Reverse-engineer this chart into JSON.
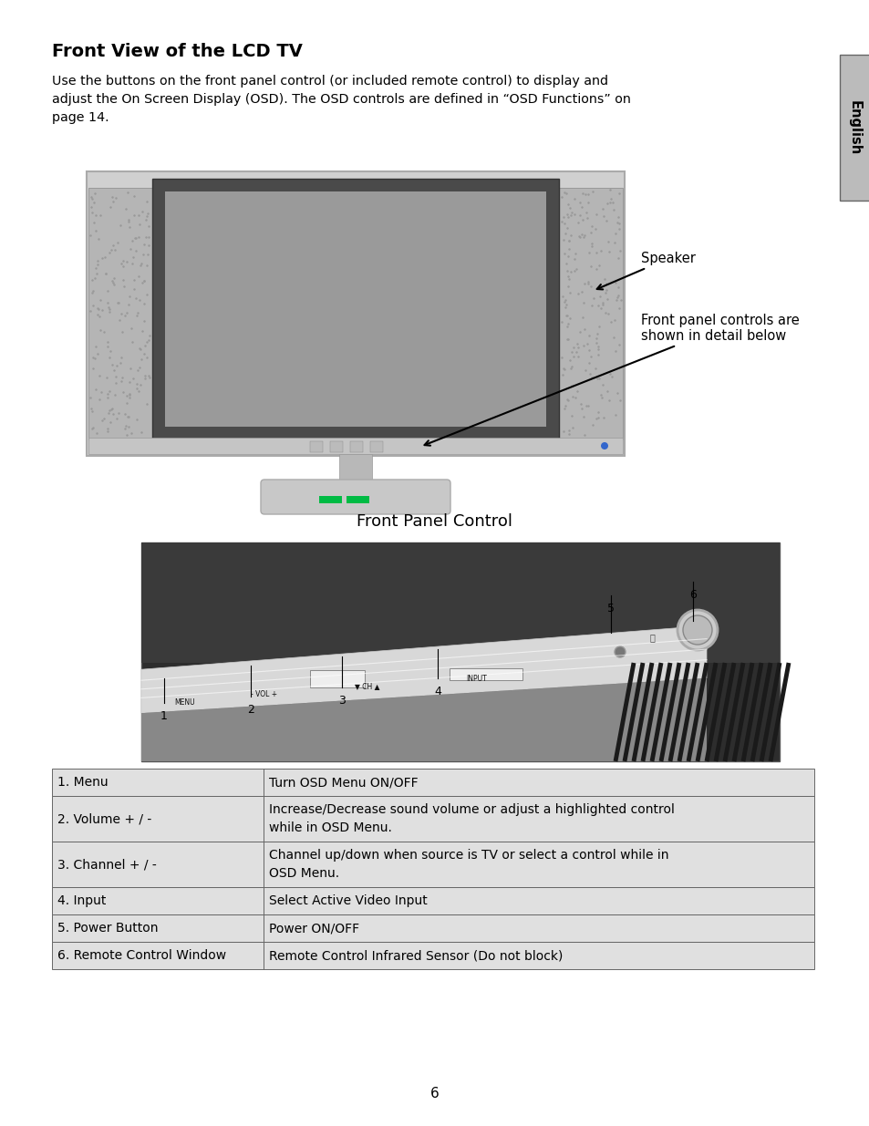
{
  "title": "Front View of the LCD TV",
  "body_line1": "Use the buttons on the front panel control (or included remote control) to display and",
  "body_line2": "adjust the On Screen Display (OSD). The OSD controls are defined in “OSD Functions” on",
  "body_line3": "page 14.",
  "label_speaker": "Speaker",
  "label_front_panel": "Front panel controls are\nshown in detail below",
  "subtitle_panel": "Front Panel Control",
  "table_rows": [
    [
      "1. Menu",
      "Turn OSD Menu ON/OFF"
    ],
    [
      "2. Volume + / -",
      "Increase/Decrease sound volume or adjust a highlighted control\nwhile in OSD Menu."
    ],
    [
      "3. Channel + / -",
      "Channel up/down when source is TV or select a control while in\nOSD Menu."
    ],
    [
      "4. Input",
      "Select Active Video Input"
    ],
    [
      "5. Power Button",
      "Power ON/OFF"
    ],
    [
      "6. Remote Control Window",
      "Remote Control Infrared Sensor (Do not block)"
    ]
  ],
  "page_number": "6",
  "tab_label": "English",
  "bg_color": "#ffffff",
  "table_bg": "#e0e0e0",
  "table_line_color": "#555555",
  "text_color": "#000000"
}
